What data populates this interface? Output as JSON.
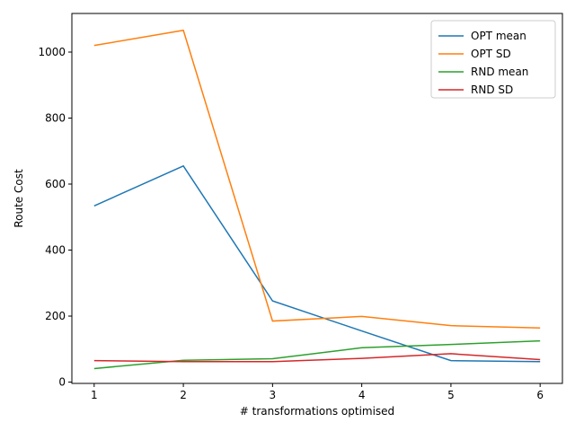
{
  "chart_data": {
    "type": "line",
    "title": "",
    "xlabel": "# transformations optimised",
    "ylabel": "Route Cost",
    "x": [
      1,
      2,
      3,
      4,
      5,
      6
    ],
    "xticks": [
      1,
      2,
      3,
      4,
      5,
      6
    ],
    "yticks": [
      0,
      200,
      400,
      600,
      800,
      1000
    ],
    "xlim": [
      0.75,
      6.25
    ],
    "ylim": [
      -4,
      1117
    ],
    "grid": false,
    "legend_position": "top-right",
    "series": [
      {
        "name": "OPT mean",
        "color": "#1f77b4",
        "values": [
          534,
          655,
          246,
          155,
          65,
          62
        ]
      },
      {
        "name": "OPT SD",
        "color": "#ff7f0e",
        "values": [
          1020,
          1066,
          185,
          199,
          171,
          164
        ]
      },
      {
        "name": "RND mean",
        "color": "#2ca02c",
        "values": [
          41,
          66,
          71,
          104,
          114,
          125
        ]
      },
      {
        "name": "RND SD",
        "color": "#d62728",
        "values": [
          65,
          62,
          62,
          72,
          86,
          68
        ]
      }
    ]
  }
}
